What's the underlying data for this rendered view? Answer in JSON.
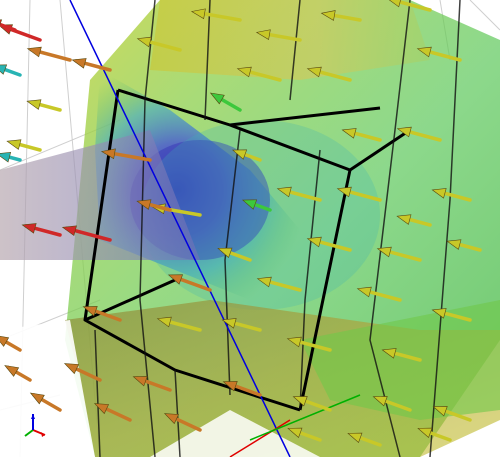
{
  "scene": {
    "kind": "3d-vector-field-visualization",
    "colors": {
      "background": "#ffffff",
      "wireframe": "#000000",
      "grid_lines": "#cfcfcf",
      "axis_x": "#e00000",
      "axis_y": "#00b000",
      "axis_z": "#0000e0",
      "contour_low": "#3c3cc8",
      "contour_mid": "#3cb4b4",
      "contour_high": "#6fc84a",
      "contour_top": "#c8c83a",
      "arrow_low": "#d02828",
      "arrow_mid": "#c87828",
      "arrow_high": "#c8c828",
      "arrow_cool": "#28b4b4",
      "arrow_green": "#3cc83c"
    },
    "arrow_direction": "pointing-left",
    "planes": [
      "slice-plane-x",
      "slice-plane-y",
      "slice-plane-z"
    ],
    "orientation_axes": [
      "x",
      "y",
      "z"
    ]
  }
}
